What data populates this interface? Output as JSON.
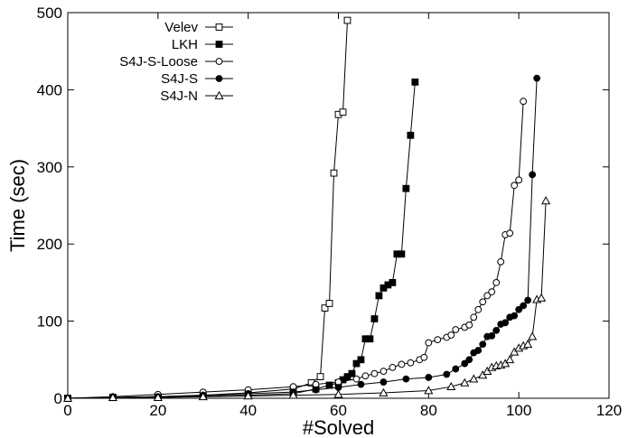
{
  "chart_data": {
    "type": "line",
    "title": "",
    "xlabel": "#Solved",
    "ylabel": "Time (sec)",
    "xlim": [
      0,
      120
    ],
    "ylim": [
      0,
      500
    ],
    "xticks": [
      0,
      20,
      40,
      60,
      80,
      100,
      120
    ],
    "yticks": [
      0,
      100,
      200,
      300,
      400,
      500
    ],
    "x_tick_labels": [
      "0",
      "20",
      "40",
      "60",
      "80",
      "100",
      "120"
    ],
    "y_tick_labels": [
      "0",
      "100",
      "200",
      "300",
      "400",
      "500"
    ],
    "grid": false,
    "legend_position": "top-left",
    "series": [
      {
        "name": "Velev",
        "marker": "open-square",
        "points": [
          [
            0,
            0
          ],
          [
            10,
            1
          ],
          [
            20,
            2
          ],
          [
            30,
            4
          ],
          [
            40,
            7
          ],
          [
            50,
            12
          ],
          [
            54,
            20
          ],
          [
            56,
            28
          ],
          [
            57,
            117
          ],
          [
            58,
            123
          ],
          [
            59,
            292
          ],
          [
            60,
            368
          ],
          [
            61,
            371
          ],
          [
            62,
            490
          ]
        ]
      },
      {
        "name": "LKH",
        "marker": "filled-square",
        "points": [
          [
            0,
            0
          ],
          [
            10,
            1
          ],
          [
            20,
            2
          ],
          [
            30,
            3
          ],
          [
            40,
            4
          ],
          [
            50,
            6
          ],
          [
            55,
            12
          ],
          [
            58,
            17
          ],
          [
            60,
            20
          ],
          [
            61,
            24
          ],
          [
            62,
            28
          ],
          [
            63,
            32
          ],
          [
            64,
            45
          ],
          [
            65,
            50
          ],
          [
            66,
            77
          ],
          [
            67,
            77
          ],
          [
            68,
            103
          ],
          [
            69,
            133
          ],
          [
            70,
            143
          ],
          [
            71,
            147
          ],
          [
            72,
            150
          ],
          [
            73,
            187
          ],
          [
            74,
            187
          ],
          [
            75,
            272
          ],
          [
            76,
            341
          ],
          [
            77,
            410
          ]
        ]
      },
      {
        "name": "S4J-S-Loose",
        "marker": "open-circle",
        "points": [
          [
            0,
            0
          ],
          [
            10,
            2
          ],
          [
            20,
            5
          ],
          [
            30,
            8
          ],
          [
            40,
            11
          ],
          [
            50,
            15
          ],
          [
            55,
            18
          ],
          [
            60,
            21
          ],
          [
            64,
            25
          ],
          [
            66,
            29
          ],
          [
            68,
            32
          ],
          [
            70,
            35
          ],
          [
            72,
            40
          ],
          [
            74,
            44
          ],
          [
            76,
            46
          ],
          [
            78,
            50
          ],
          [
            79,
            53
          ],
          [
            80,
            72
          ],
          [
            82,
            76
          ],
          [
            84,
            79
          ],
          [
            85,
            82
          ],
          [
            86,
            89
          ],
          [
            88,
            92
          ],
          [
            89,
            95
          ],
          [
            90,
            105
          ],
          [
            91,
            115
          ],
          [
            92,
            125
          ],
          [
            93,
            133
          ],
          [
            94,
            138
          ],
          [
            95,
            150
          ],
          [
            96,
            177
          ],
          [
            97,
            212
          ],
          [
            98,
            214
          ],
          [
            99,
            276
          ],
          [
            100,
            283
          ],
          [
            101,
            385
          ]
        ]
      },
      {
        "name": "S4J-S",
        "marker": "filled-circle",
        "points": [
          [
            0,
            0
          ],
          [
            10,
            1
          ],
          [
            20,
            2
          ],
          [
            30,
            4
          ],
          [
            40,
            6
          ],
          [
            50,
            8
          ],
          [
            55,
            11
          ],
          [
            60,
            14
          ],
          [
            65,
            18
          ],
          [
            70,
            21
          ],
          [
            75,
            25
          ],
          [
            80,
            27
          ],
          [
            84,
            31
          ],
          [
            86,
            38
          ],
          [
            88,
            45
          ],
          [
            89,
            50
          ],
          [
            90,
            59
          ],
          [
            91,
            62
          ],
          [
            92,
            70
          ],
          [
            93,
            80
          ],
          [
            94,
            81
          ],
          [
            95,
            88
          ],
          [
            96,
            96
          ],
          [
            97,
            98
          ],
          [
            98,
            105
          ],
          [
            99,
            107
          ],
          [
            100,
            115
          ],
          [
            101,
            120
          ],
          [
            102,
            127
          ],
          [
            103,
            290
          ],
          [
            104,
            415
          ]
        ]
      },
      {
        "name": "S4J-N",
        "marker": "open-triangle",
        "points": [
          [
            0,
            0
          ],
          [
            10,
            1
          ],
          [
            20,
            1
          ],
          [
            30,
            2
          ],
          [
            40,
            3
          ],
          [
            50,
            4
          ],
          [
            60,
            5
          ],
          [
            70,
            7
          ],
          [
            80,
            10
          ],
          [
            85,
            15
          ],
          [
            88,
            20
          ],
          [
            90,
            25
          ],
          [
            92,
            30
          ],
          [
            93,
            35
          ],
          [
            94,
            40
          ],
          [
            95,
            42
          ],
          [
            96,
            43
          ],
          [
            97,
            45
          ],
          [
            98,
            50
          ],
          [
            99,
            60
          ],
          [
            100,
            65
          ],
          [
            101,
            68
          ],
          [
            102,
            70
          ],
          [
            103,
            80
          ],
          [
            104,
            128
          ],
          [
            105,
            130
          ],
          [
            106,
            256
          ]
        ]
      }
    ]
  }
}
